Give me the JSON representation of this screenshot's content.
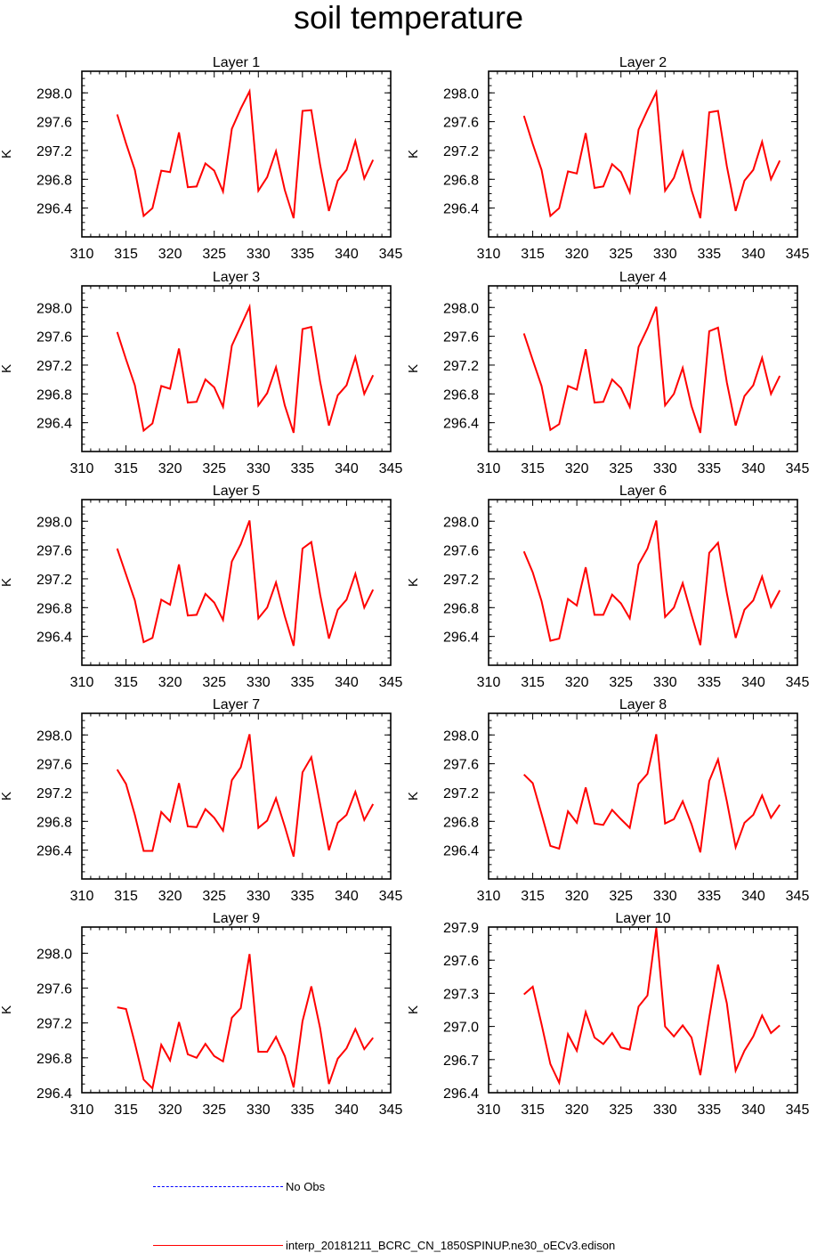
{
  "title": "soil temperature",
  "colors": {
    "model": "#ff0000",
    "obs": "#0000ff",
    "axis": "#000000"
  },
  "legend": {
    "obs_label": "No Obs",
    "model_label": "interp_20181211_BCRC_CN_1850SPINUP.ne30_oECv3.edison"
  },
  "chart_data": [
    {
      "type": "line",
      "title": "Layer 1",
      "ylabel": "K",
      "xlim": [
        310,
        345
      ],
      "ylim": [
        296.0,
        298.3
      ],
      "xticks": [
        "310",
        "315",
        "320",
        "325",
        "330",
        "335",
        "340",
        "345"
      ],
      "yticks": [
        "296.4",
        "296.8",
        "297.2",
        "297.6",
        "298.0"
      ],
      "series": [
        {
          "name": "interp_20181211_BCRC_CN_1850SPINUP.ne30_oECv3.edison",
          "x": [
            314,
            315,
            316,
            317,
            318,
            319,
            320,
            321,
            322,
            323,
            324,
            325,
            326,
            327,
            328,
            329,
            330,
            331,
            332,
            333,
            334,
            335,
            336,
            337,
            338,
            339,
            340,
            341,
            342,
            343
          ],
          "y": [
            297.7,
            297.3,
            296.93,
            296.29,
            296.4,
            296.92,
            296.9,
            297.45,
            296.69,
            296.7,
            297.02,
            296.92,
            296.63,
            297.5,
            297.78,
            298.02,
            296.64,
            296.83,
            297.19,
            296.65,
            296.26,
            297.75,
            297.76,
            297.0,
            296.36,
            296.78,
            296.93,
            297.33,
            296.81,
            297.07
          ]
        }
      ]
    },
    {
      "type": "line",
      "title": "Layer 2",
      "ylabel": "K",
      "xlim": [
        310,
        345
      ],
      "ylim": [
        296.0,
        298.3
      ],
      "xticks": [
        "310",
        "315",
        "320",
        "325",
        "330",
        "335",
        "340",
        "345"
      ],
      "yticks": [
        "296.4",
        "296.8",
        "297.2",
        "297.6",
        "298.0"
      ],
      "series": [
        {
          "name": "interp_20181211_BCRC_CN_1850SPINUP.ne30_oECv3.edison",
          "x": [
            314,
            315,
            316,
            317,
            318,
            319,
            320,
            321,
            322,
            323,
            324,
            325,
            326,
            327,
            328,
            329,
            330,
            331,
            332,
            333,
            334,
            335,
            336,
            337,
            338,
            339,
            340,
            341,
            342,
            343
          ],
          "y": [
            297.68,
            297.29,
            296.93,
            296.29,
            296.4,
            296.91,
            296.88,
            297.44,
            296.68,
            296.7,
            297.01,
            296.9,
            296.62,
            297.49,
            297.76,
            298.01,
            296.64,
            296.82,
            297.18,
            296.65,
            296.26,
            297.73,
            297.75,
            296.98,
            296.36,
            296.78,
            296.93,
            297.32,
            296.8,
            297.06
          ]
        }
      ]
    },
    {
      "type": "line",
      "title": "Layer 3",
      "ylabel": "K",
      "xlim": [
        310,
        345
      ],
      "ylim": [
        296.0,
        298.3
      ],
      "xticks": [
        "310",
        "315",
        "320",
        "325",
        "330",
        "335",
        "340",
        "345"
      ],
      "yticks": [
        "296.4",
        "296.8",
        "297.2",
        "297.6",
        "298.0"
      ],
      "series": [
        {
          "name": "interp_20181211_BCRC_CN_1850SPINUP.ne30_oECv3.edison",
          "x": [
            314,
            315,
            316,
            317,
            318,
            319,
            320,
            321,
            322,
            323,
            324,
            325,
            326,
            327,
            328,
            329,
            330,
            331,
            332,
            333,
            334,
            335,
            336,
            337,
            338,
            339,
            340,
            341,
            342,
            343
          ],
          "y": [
            297.66,
            297.28,
            296.92,
            296.29,
            296.39,
            296.91,
            296.87,
            297.43,
            296.68,
            296.69,
            297.0,
            296.89,
            296.62,
            297.47,
            297.74,
            298.01,
            296.64,
            296.81,
            297.17,
            296.64,
            296.26,
            297.7,
            297.73,
            296.97,
            296.36,
            296.78,
            296.92,
            297.31,
            296.8,
            297.06
          ]
        }
      ]
    },
    {
      "type": "line",
      "title": "Layer 4",
      "ylabel": "K",
      "xlim": [
        310,
        345
      ],
      "ylim": [
        296.0,
        298.3
      ],
      "xticks": [
        "310",
        "315",
        "320",
        "325",
        "330",
        "335",
        "340",
        "345"
      ],
      "yticks": [
        "296.4",
        "296.8",
        "297.2",
        "297.6",
        "298.0"
      ],
      "series": [
        {
          "name": "interp_20181211_BCRC_CN_1850SPINUP.ne30_oECv3.edison",
          "x": [
            314,
            315,
            316,
            317,
            318,
            319,
            320,
            321,
            322,
            323,
            324,
            325,
            326,
            327,
            328,
            329,
            330,
            331,
            332,
            333,
            334,
            335,
            336,
            337,
            338,
            339,
            340,
            341,
            342,
            343
          ],
          "y": [
            297.64,
            297.27,
            296.91,
            296.3,
            296.38,
            296.91,
            296.86,
            297.42,
            296.68,
            296.69,
            297.0,
            296.88,
            296.62,
            297.45,
            297.71,
            298.01,
            296.64,
            296.8,
            297.16,
            296.63,
            296.26,
            297.67,
            297.72,
            296.96,
            296.36,
            296.77,
            296.92,
            297.3,
            296.8,
            297.05
          ]
        }
      ]
    },
    {
      "type": "line",
      "title": "Layer 5",
      "ylabel": "K",
      "xlim": [
        310,
        345
      ],
      "ylim": [
        296.0,
        298.3
      ],
      "xticks": [
        "310",
        "315",
        "320",
        "325",
        "330",
        "335",
        "340",
        "345"
      ],
      "yticks": [
        "296.4",
        "296.8",
        "297.2",
        "297.6",
        "298.0"
      ],
      "series": [
        {
          "name": "interp_20181211_BCRC_CN_1850SPINUP.ne30_oECv3.edison",
          "x": [
            314,
            315,
            316,
            317,
            318,
            319,
            320,
            321,
            322,
            323,
            324,
            325,
            326,
            327,
            328,
            329,
            330,
            331,
            332,
            333,
            334,
            335,
            336,
            337,
            338,
            339,
            340,
            341,
            342,
            343
          ],
          "y": [
            297.62,
            297.26,
            296.9,
            296.32,
            296.38,
            296.91,
            296.84,
            297.4,
            296.69,
            296.7,
            296.99,
            296.87,
            296.63,
            297.44,
            297.68,
            298.01,
            296.65,
            296.8,
            297.15,
            296.68,
            296.27,
            297.62,
            297.71,
            296.98,
            296.37,
            296.77,
            296.91,
            297.27,
            296.8,
            297.05
          ]
        }
      ]
    },
    {
      "type": "line",
      "title": "Layer 6",
      "ylabel": "K",
      "xlim": [
        310,
        345
      ],
      "ylim": [
        296.0,
        298.3
      ],
      "xticks": [
        "310",
        "315",
        "320",
        "325",
        "330",
        "335",
        "340",
        "345"
      ],
      "yticks": [
        "296.4",
        "296.8",
        "297.2",
        "297.6",
        "298.0"
      ],
      "series": [
        {
          "name": "interp_20181211_BCRC_CN_1850SPINUP.ne30_oECv3.edison",
          "x": [
            314,
            315,
            316,
            317,
            318,
            319,
            320,
            321,
            322,
            323,
            324,
            325,
            326,
            327,
            328,
            329,
            330,
            331,
            332,
            333,
            334,
            335,
            336,
            337,
            338,
            339,
            340,
            341,
            342,
            343
          ],
          "y": [
            297.58,
            297.29,
            296.89,
            296.34,
            296.37,
            296.92,
            296.83,
            297.36,
            296.7,
            296.7,
            296.98,
            296.86,
            296.65,
            297.4,
            297.62,
            298.01,
            296.67,
            296.8,
            297.14,
            296.7,
            296.28,
            297.56,
            297.7,
            297.0,
            296.38,
            296.77,
            296.9,
            297.23,
            296.81,
            297.04
          ]
        }
      ]
    },
    {
      "type": "line",
      "title": "Layer 7",
      "ylabel": "K",
      "xlim": [
        310,
        345
      ],
      "ylim": [
        296.0,
        298.3
      ],
      "xticks": [
        "310",
        "315",
        "320",
        "325",
        "330",
        "335",
        "340",
        "345"
      ],
      "yticks": [
        "296.4",
        "296.8",
        "297.2",
        "297.6",
        "298.0"
      ],
      "series": [
        {
          "name": "interp_20181211_BCRC_CN_1850SPINUP.ne30_oECv3.edison",
          "x": [
            314,
            315,
            316,
            317,
            318,
            319,
            320,
            321,
            322,
            323,
            324,
            325,
            326,
            327,
            328,
            329,
            330,
            331,
            332,
            333,
            334,
            335,
            336,
            337,
            338,
            339,
            340,
            341,
            342,
            343
          ],
          "y": [
            297.52,
            297.32,
            296.89,
            296.39,
            296.39,
            296.93,
            296.8,
            297.33,
            296.73,
            296.72,
            296.97,
            296.85,
            296.67,
            297.37,
            297.55,
            298.01,
            296.71,
            296.81,
            297.12,
            296.73,
            296.31,
            297.48,
            297.69,
            297.04,
            296.4,
            296.78,
            296.89,
            297.21,
            296.82,
            297.04
          ]
        }
      ]
    },
    {
      "type": "line",
      "title": "Layer 8",
      "ylabel": "K",
      "xlim": [
        310,
        345
      ],
      "ylim": [
        296.0,
        298.3
      ],
      "xticks": [
        "310",
        "315",
        "320",
        "325",
        "330",
        "335",
        "340",
        "345"
      ],
      "yticks": [
        "296.4",
        "296.8",
        "297.2",
        "297.6",
        "298.0"
      ],
      "series": [
        {
          "name": "interp_20181211_BCRC_CN_1850SPINUP.ne30_oECv3.edison",
          "x": [
            314,
            315,
            316,
            317,
            318,
            319,
            320,
            321,
            322,
            323,
            324,
            325,
            326,
            327,
            328,
            329,
            330,
            331,
            332,
            333,
            334,
            335,
            336,
            337,
            338,
            339,
            340,
            341,
            342,
            343
          ],
          "y": [
            297.45,
            297.33,
            296.9,
            296.46,
            296.42,
            296.94,
            296.78,
            297.27,
            296.77,
            296.75,
            296.96,
            296.83,
            296.71,
            297.32,
            297.46,
            298.01,
            296.77,
            296.83,
            297.08,
            296.76,
            296.37,
            297.36,
            297.66,
            297.08,
            296.44,
            296.78,
            296.89,
            297.16,
            296.85,
            297.03
          ]
        }
      ]
    },
    {
      "type": "line",
      "title": "Layer 9",
      "ylabel": "K",
      "xlim": [
        310,
        345
      ],
      "ylim": [
        296.4,
        298.3
      ],
      "xticks": [
        "310",
        "315",
        "320",
        "325",
        "330",
        "335",
        "340",
        "345"
      ],
      "yticks": [
        "296.4",
        "296.8",
        "297.2",
        "297.6",
        "298.0"
      ],
      "series": [
        {
          "name": "interp_20181211_BCRC_CN_1850SPINUP.ne30_oECv3.edison",
          "x": [
            314,
            315,
            316,
            317,
            318,
            319,
            320,
            321,
            322,
            323,
            324,
            325,
            326,
            327,
            328,
            329,
            330,
            331,
            332,
            333,
            334,
            335,
            336,
            337,
            338,
            339,
            340,
            341,
            342,
            343
          ],
          "y": [
            297.38,
            297.36,
            296.97,
            296.55,
            296.45,
            296.95,
            296.77,
            297.21,
            296.84,
            296.8,
            296.96,
            296.82,
            296.76,
            297.26,
            297.37,
            297.99,
            296.87,
            296.87,
            297.04,
            296.82,
            296.46,
            297.22,
            297.62,
            297.14,
            296.5,
            296.79,
            296.91,
            297.13,
            296.9,
            297.03
          ]
        }
      ]
    },
    {
      "type": "line",
      "title": "Layer 10",
      "ylabel": "K",
      "xlim": [
        310,
        345
      ],
      "ylim": [
        296.4,
        297.9
      ],
      "xticks": [
        "310",
        "315",
        "320",
        "325",
        "330",
        "335",
        "340",
        "345"
      ],
      "yticks": [
        "296.4",
        "296.7",
        "297.0",
        "297.3",
        "297.6",
        "297.9"
      ],
      "series": [
        {
          "name": "interp_20181211_BCRC_CN_1850SPINUP.ne30_oECv3.edison",
          "x": [
            314,
            315,
            316,
            317,
            318,
            319,
            320,
            321,
            322,
            323,
            324,
            325,
            326,
            327,
            328,
            329,
            330,
            331,
            332,
            333,
            334,
            335,
            336,
            337,
            338,
            339,
            340,
            341,
            342,
            343
          ],
          "y": [
            297.29,
            297.36,
            297.02,
            296.66,
            296.49,
            296.93,
            296.78,
            297.13,
            296.9,
            296.84,
            296.94,
            296.81,
            296.79,
            297.18,
            297.28,
            297.89,
            297.0,
            296.91,
            297.01,
            296.9,
            296.56,
            297.08,
            297.56,
            297.21,
            296.6,
            296.78,
            296.91,
            297.1,
            296.94,
            297.01
          ]
        }
      ]
    }
  ]
}
